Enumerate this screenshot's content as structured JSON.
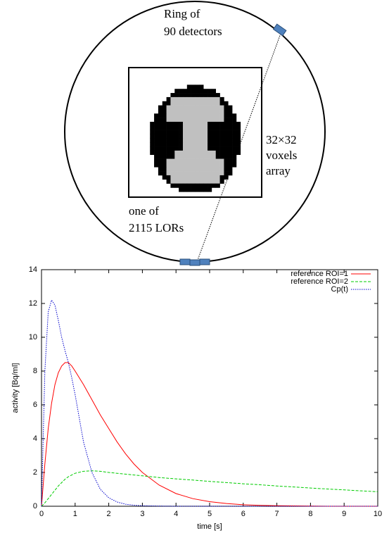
{
  "diagram": {
    "ring_label": [
      "Ring of",
      "90 detectors"
    ],
    "voxel_label": [
      "32×32",
      "voxels",
      "array"
    ],
    "lor_label": [
      "one of",
      "2115 LORs"
    ]
  },
  "chart_data": {
    "type": "line",
    "xlabel": "time [s]",
    "ylabel": "activity [Bq/ml]",
    "x": [
      0,
      0.1,
      0.2,
      0.3,
      0.4,
      0.5,
      0.6,
      0.7,
      0.8,
      0.9,
      1.0,
      1.25,
      1.5,
      1.75,
      2,
      2.25,
      2.5,
      2.75,
      3,
      3.5,
      4,
      4.5,
      5,
      5.5,
      6,
      6.5,
      7,
      7.5,
      8,
      8.5,
      9,
      9.5,
      10
    ],
    "series": [
      {
        "name": "reference ROI=1",
        "color": "#ff0000",
        "style": "solid",
        "values": [
          0,
          2.5,
          4.6,
          6.1,
          7.2,
          7.9,
          8.3,
          8.5,
          8.5,
          8.3,
          8.0,
          7.2,
          6.3,
          5.4,
          4.6,
          3.8,
          3.1,
          2.5,
          2.0,
          1.25,
          0.75,
          0.45,
          0.27,
          0.16,
          0.09,
          0.05,
          0.03,
          0.02,
          0.01,
          0,
          0,
          0,
          0
        ]
      },
      {
        "name": "reference ROI=2",
        "color": "#00cc00",
        "style": "dashed",
        "values": [
          0,
          0.2,
          0.45,
          0.7,
          0.95,
          1.2,
          1.4,
          1.6,
          1.75,
          1.85,
          1.95,
          2.07,
          2.1,
          2.07,
          2.0,
          1.95,
          1.9,
          1.85,
          1.8,
          1.7,
          1.62,
          1.55,
          1.47,
          1.4,
          1.33,
          1.27,
          1.2,
          1.14,
          1.08,
          1.02,
          0.97,
          0.91,
          0.86
        ]
      },
      {
        "name": "Cp(t)",
        "color": "#0000cc",
        "style": "dotted",
        "values": [
          0,
          8.0,
          11.5,
          12.2,
          11.9,
          11.0,
          10.0,
          9.2,
          8.5,
          7.6,
          6.6,
          3.8,
          2.0,
          1.0,
          0.5,
          0.25,
          0.12,
          0.06,
          0.03,
          0.01,
          0,
          0,
          0,
          0,
          0,
          0,
          0,
          0,
          0,
          0,
          0,
          0,
          0
        ]
      }
    ],
    "xlim": [
      0,
      10
    ],
    "xticks": [
      0,
      1,
      2,
      3,
      4,
      5,
      6,
      7,
      8,
      9,
      10
    ],
    "ylim": [
      0,
      14
    ],
    "yticks": [
      0,
      2,
      4,
      6,
      8,
      10,
      12,
      14
    ],
    "legend": "upper right"
  }
}
